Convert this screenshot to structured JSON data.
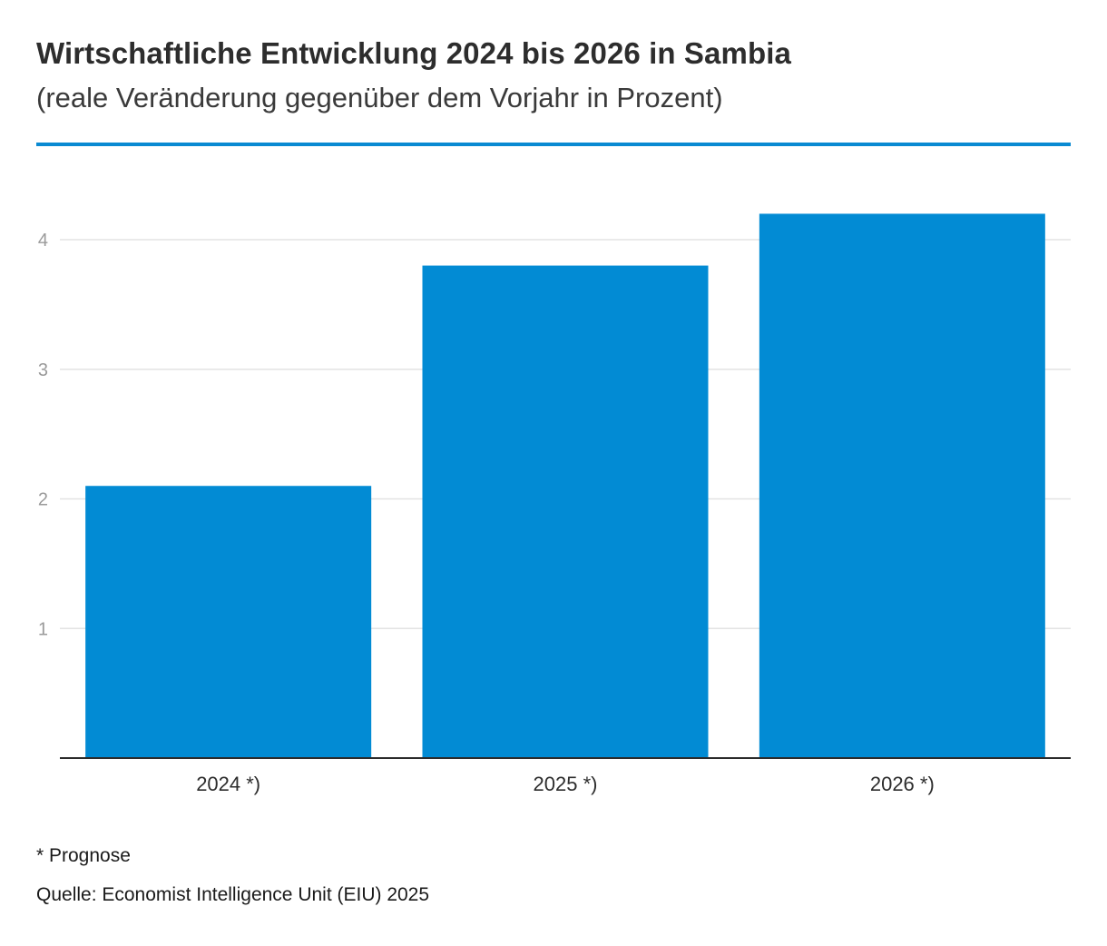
{
  "header": {
    "title": "Wirtschaftliche Entwicklung 2024 bis 2026 in Sambia",
    "subtitle": "(reale Veränderung gegenüber dem Vorjahr in Prozent)"
  },
  "footer": {
    "note": "* Prognose",
    "source": "Quelle: Economist Intelligence Unit (EIU) 2025"
  },
  "colors": {
    "accent": "#0a8ad2",
    "bar": "#028bd4",
    "grid": "#e3e3e3",
    "axis": "#2b2b2b"
  },
  "chart_data": {
    "type": "bar",
    "title": "Wirtschaftliche Entwicklung 2024 bis 2026 in Sambia",
    "subtitle": "(reale Veränderung gegenüber dem Vorjahr in Prozent)",
    "categories": [
      "2024 *)",
      "2025 *)",
      "2026 *)"
    ],
    "values": [
      2.1,
      3.8,
      4.2
    ],
    "xlabel": "",
    "ylabel": "",
    "ylim": [
      0,
      4.5
    ],
    "yticks": [
      1,
      2,
      3,
      4
    ],
    "grid": true,
    "legend": "none"
  }
}
